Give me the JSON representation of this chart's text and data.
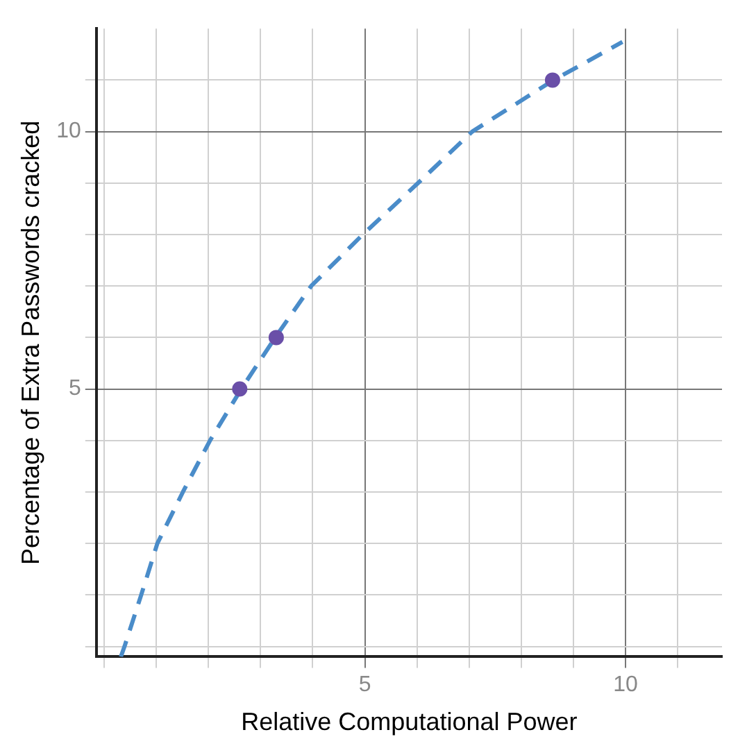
{
  "chart_data": {
    "type": "line",
    "xlabel": "Relative Computational Power",
    "ylabel": "Percentage of Extra Passwords cracked",
    "xlim": [
      -0.15,
      11.85
    ],
    "ylim": [
      -0.2,
      12
    ],
    "xticks": [
      {
        "value": 0,
        "label": null
      },
      {
        "value": 1,
        "label": null
      },
      {
        "value": 2,
        "label": null
      },
      {
        "value": 3,
        "label": null
      },
      {
        "value": 4,
        "label": null
      },
      5,
      {
        "value": 6,
        "label": null
      },
      {
        "value": 7,
        "label": null
      },
      {
        "value": 8,
        "label": null
      },
      {
        "value": 9,
        "label": null
      },
      10,
      {
        "value": 11,
        "label": null
      }
    ],
    "yticks": [
      {
        "value": 0,
        "label": null
      },
      {
        "value": 1,
        "label": null
      },
      {
        "value": 2,
        "label": null
      },
      {
        "value": 3,
        "label": null
      },
      {
        "value": 4,
        "label": null
      },
      5,
      {
        "value": 6,
        "label": null
      },
      {
        "value": 7,
        "label": null
      },
      {
        "value": 8,
        "label": null
      },
      {
        "value": 9,
        "label": null
      },
      10,
      {
        "value": 11,
        "label": null
      }
    ],
    "grid": true,
    "legend": false,
    "series": [
      {
        "color": "#4a8cc9",
        "line_style": "dashed",
        "marker": "none",
        "x": [
          0.32,
          0.39,
          0.71,
          1.02,
          1.51,
          2.03,
          2.63,
          3.28,
          3.97,
          4.96,
          6.02,
          7.06,
          8.62,
          9.94
        ],
        "values": [
          -0.2,
          0,
          1,
          2,
          3,
          4,
          5,
          6,
          7,
          8,
          9,
          10,
          11,
          11.74
        ]
      },
      {
        "type": "scatter",
        "color": "#6a4fa8",
        "marker": "circle",
        "x": [
          2.6,
          3.3,
          8.6
        ],
        "values": [
          5,
          6,
          11
        ]
      }
    ]
  }
}
